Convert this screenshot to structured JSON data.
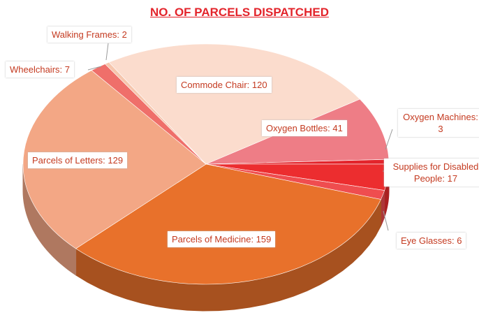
{
  "chart_data": {
    "type": "pie",
    "title": "NO. OF PARCELS DISPATCHED",
    "values": [
      2,
      120,
      41,
      3,
      17,
      6,
      159,
      129,
      7
    ],
    "value_labels": [
      "Walking Frames: 2",
      "Commode Chair: 120",
      "Oxygen Bottles: 41",
      "Oxygen Machines: 3",
      "Supplies for Disabled People: 17",
      "Eye Glasses: 6",
      "Parcels of Medicine: 159",
      "Parcels of Letters: 129",
      "Wheelchairs: 7"
    ],
    "colors": [
      "#f6c6ad",
      "#fbdccd",
      "#ee7d86",
      "#e3242b",
      "#ec2d2f",
      "#ef4d4f",
      "#e8712b",
      "#f3a785",
      "#ef6f6a"
    ]
  }
}
